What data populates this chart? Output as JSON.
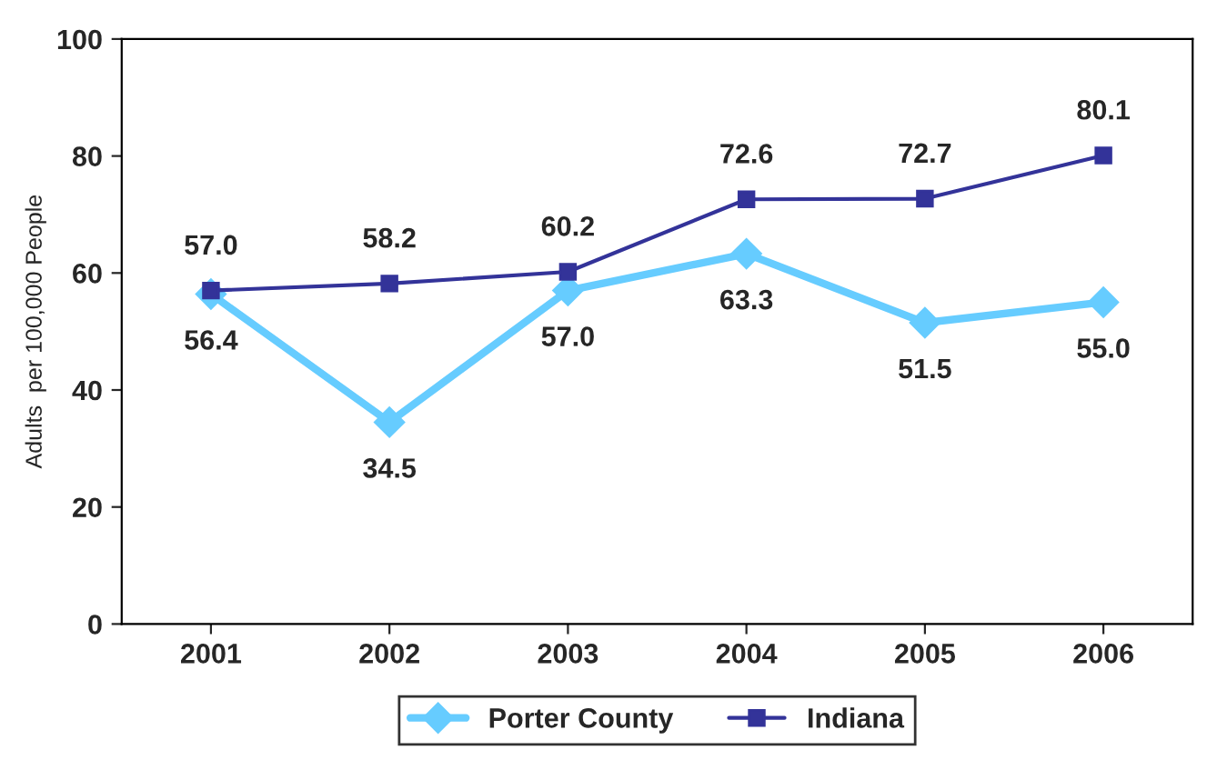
{
  "chart_data": {
    "type": "line",
    "ylabel": "Adults  per 100,000 People",
    "categories": [
      "2001",
      "2002",
      "2003",
      "2004",
      "2005",
      "2006"
    ],
    "series": [
      {
        "name": "Porter County",
        "color": "#66ccff",
        "marker": "diamond",
        "values": [
          56.4,
          34.5,
          57.0,
          63.3,
          51.5,
          55.0
        ],
        "value_labels": [
          "56.4",
          "34.5",
          "57.0",
          "63.3",
          "51.5",
          "55.0"
        ]
      },
      {
        "name": "Indiana",
        "color": "#333399",
        "marker": "square",
        "values": [
          57.0,
          58.2,
          60.2,
          72.6,
          72.7,
          80.1
        ],
        "value_labels": [
          "57.0",
          "58.2",
          "60.2",
          "72.6",
          "72.7",
          "80.1"
        ]
      }
    ],
    "ylim": [
      0,
      100
    ],
    "yticks": [
      0,
      20,
      40,
      60,
      80,
      100
    ],
    "legend": "bottom",
    "grid": false
  }
}
